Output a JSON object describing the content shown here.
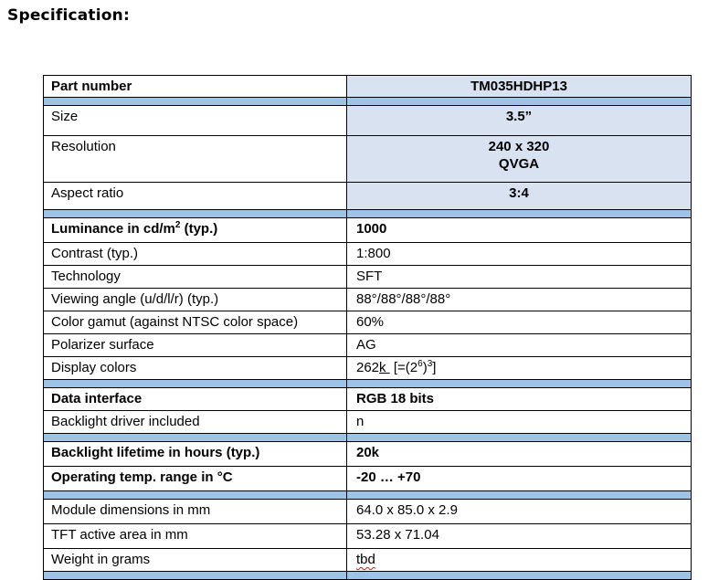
{
  "title": "Specification:",
  "colors": {
    "cell_fill": "#d9e2f1",
    "band_fill": "#9dc3e6",
    "border": "#000000",
    "misspell_underline": "#e01010"
  },
  "table": {
    "header_row": {
      "label": "Part number",
      "value": "TM035HDHP13"
    },
    "rows": {
      "size": {
        "label": "Size",
        "value": "3.5”"
      },
      "resolution": {
        "label": "Resolution",
        "line1": "240 x 320",
        "line2": "QVGA"
      },
      "aspect": {
        "label": "Aspect ratio",
        "value": "3:4"
      },
      "luminance": {
        "label_prefix": "Luminance in cd/m",
        "label_sup": "2",
        "label_suffix": " (typ.)",
        "value": "1000"
      },
      "contrast": {
        "label": "Contrast (typ.)",
        "value": "1:800"
      },
      "technology": {
        "label": "Technology",
        "value": "SFT"
      },
      "viewing": {
        "label": "Viewing angle (u/d/l/r) (typ.)",
        "value": "88°/88°/88°/88°"
      },
      "gamut": {
        "label": "Color gamut (against NTSC color space)",
        "value": "60%"
      },
      "polarizer": {
        "label": "Polarizer surface",
        "value": "AG"
      },
      "display_colors": {
        "label": "Display colors",
        "value_prefix": "262",
        "value_underlined": "k ",
        "value_open": " [=(2",
        "value_sup1": "6",
        "value_mid": ")",
        "value_sup2": "3",
        "value_close": "]"
      },
      "interface": {
        "label": "Data interface",
        "value": "RGB 18 bits"
      },
      "backlight_driver": {
        "label": "Backlight driver included",
        "value": "n"
      },
      "backlight_lifetime": {
        "label": "Backlight lifetime in hours (typ.)",
        "value": "20k"
      },
      "temp": {
        "label": "Operating temp. range in °C",
        "value": "-20 … +70"
      },
      "module_dims": {
        "label": "Module dimensions in mm",
        "value": "64.0 x 85.0 x 2.9"
      },
      "tft_area": {
        "label": "TFT active area in mm",
        "value": "53.28 x 71.04"
      },
      "weight": {
        "label": "Weight in grams",
        "value": "tbd"
      }
    }
  }
}
